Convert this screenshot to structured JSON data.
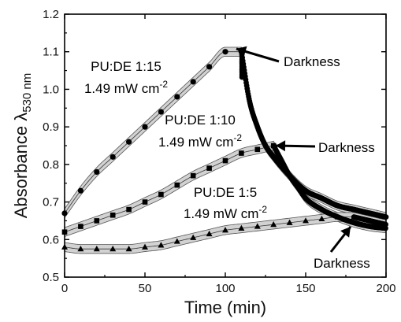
{
  "chart_data": {
    "type": "scatter",
    "xlabel": "Time (min)",
    "ylabel": {
      "main": "Absorbance λ",
      "subscript": "530 nm"
    },
    "xlim": [
      0,
      200
    ],
    "ylim": [
      0.5,
      1.2
    ],
    "xticks": [
      0,
      50,
      100,
      150,
      200
    ],
    "yticks": [
      0.5,
      0.6,
      0.7,
      0.8,
      0.9,
      1.0,
      1.1,
      1.2
    ],
    "grid": false,
    "legend": "none",
    "series": [
      {
        "marker": "circle",
        "label": [
          "PU:DE 1:15",
          "1.49 mW cm"
        ],
        "label_superscript": "-2",
        "darkness_label": "Darkness",
        "dark_start": 110,
        "irradiation": {
          "x": [
            0,
            10,
            20,
            30,
            40,
            50,
            60,
            70,
            80,
            90,
            100,
            110
          ],
          "y": [
            0.67,
            0.73,
            0.78,
            0.82,
            0.86,
            0.9,
            0.94,
            0.98,
            1.02,
            1.06,
            1.1,
            1.1
          ]
        },
        "darkness": {
          "x": [
            110,
            115,
            120,
            125,
            130,
            140,
            150,
            160,
            170,
            180,
            190,
            200
          ],
          "y": [
            1.1,
            0.97,
            0.9,
            0.85,
            0.82,
            0.77,
            0.73,
            0.71,
            0.69,
            0.68,
            0.67,
            0.66
          ]
        },
        "band": 0.012
      },
      {
        "marker": "square",
        "label": [
          "PU:DE 1:10",
          "1.49 mW cm"
        ],
        "label_superscript": "-2",
        "darkness_label": "Darkness",
        "dark_start": 130,
        "irradiation": {
          "x": [
            0,
            10,
            20,
            30,
            40,
            50,
            60,
            70,
            80,
            90,
            100,
            110,
            120,
            130
          ],
          "y": [
            0.62,
            0.635,
            0.65,
            0.665,
            0.68,
            0.7,
            0.72,
            0.745,
            0.77,
            0.79,
            0.81,
            0.83,
            0.84,
            0.85
          ]
        },
        "darkness": {
          "x": [
            130,
            135,
            140,
            145,
            150,
            160,
            170,
            180,
            190,
            200
          ],
          "y": [
            0.85,
            0.81,
            0.77,
            0.74,
            0.71,
            0.68,
            0.66,
            0.645,
            0.635,
            0.63
          ]
        },
        "band": 0.012
      },
      {
        "marker": "triangle",
        "label": [
          "PU:DE 1:5",
          "1.49 mW cm"
        ],
        "label_superscript": "-2",
        "darkness_label": "Darkness",
        "dark_start": 180,
        "irradiation": {
          "x": [
            0,
            10,
            20,
            30,
            40,
            50,
            60,
            70,
            80,
            90,
            100,
            110,
            120,
            130,
            140,
            150,
            160,
            170,
            180
          ],
          "y": [
            0.58,
            0.575,
            0.575,
            0.575,
            0.575,
            0.58,
            0.585,
            0.595,
            0.605,
            0.615,
            0.625,
            0.63,
            0.635,
            0.64,
            0.645,
            0.65,
            0.655,
            0.66,
            0.66
          ]
        },
        "darkness": {
          "x": [
            180,
            185,
            190,
            195,
            200
          ],
          "y": [
            0.66,
            0.655,
            0.65,
            0.645,
            0.64
          ]
        },
        "band": 0.012
      }
    ]
  }
}
